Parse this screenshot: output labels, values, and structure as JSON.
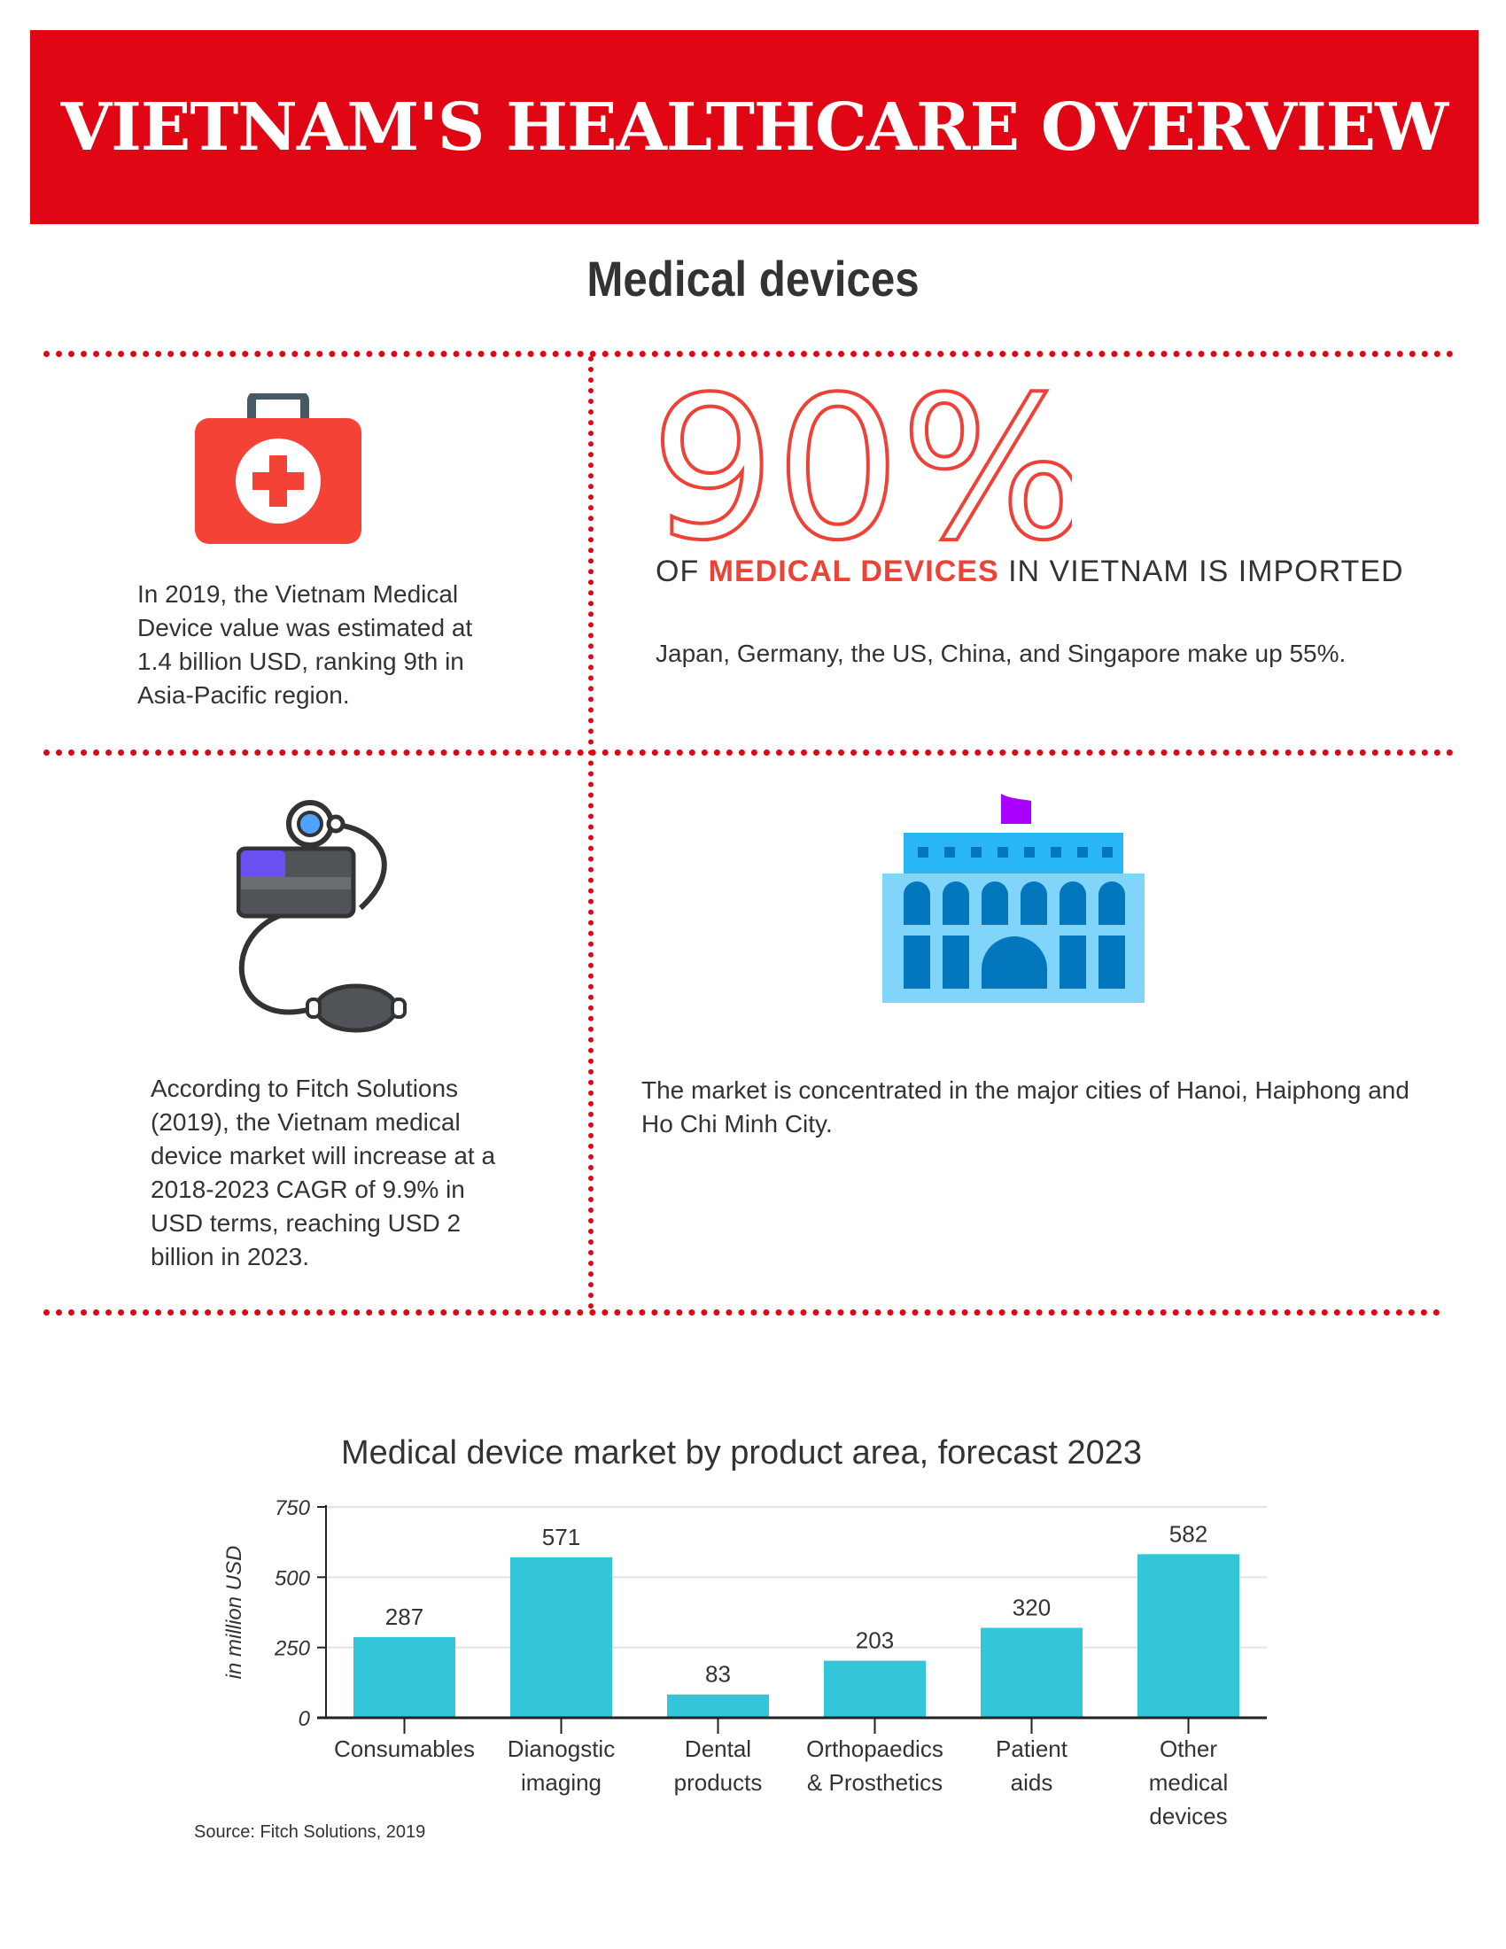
{
  "header": {
    "title": "VIETNAM'S HEALTHCARE OVERVIEW"
  },
  "section": {
    "title": "Medical devices"
  },
  "cards": [
    {
      "icon": "medical-kit-icon",
      "text": "In 2019, the Vietnam Medical Device value was estimated at 1.4 billion USD, ranking 9th in Asia-Pacific region."
    },
    {
      "big_stat": "90%",
      "stat_prefix": "OF",
      "stat_highlight": "MEDICAL DEVICES",
      "stat_suffix": "IN VIETNAM IS IMPORTED",
      "text": "Japan, Germany, the US, China, and Singapore make up 55%."
    },
    {
      "icon": "blood-pressure-monitor-icon",
      "text": "According to Fitch Solutions (2019), the Vietnam medical device market will increase at a 2018-2023 CAGR of 9.9% in USD terms, reaching USD 2 billion in 2023."
    },
    {
      "icon": "city-building-icon",
      "text": "The market is concentrated in the major cities of Hanoi, Haiphong and Ho Chi Minh City."
    }
  ],
  "colors": {
    "brand_red": "#e10613",
    "stat_red": "#ef4136",
    "bar": "#33c6d8"
  },
  "chart_data": {
    "type": "bar",
    "title": "Medical device market by product area, forecast 2023",
    "categories": [
      [
        "Consumables"
      ],
      [
        "Dianogstic",
        "imaging"
      ],
      [
        "Dental",
        "products"
      ],
      [
        "Orthopaedics",
        "& Prosthetics"
      ],
      [
        "Patient",
        "aids"
      ],
      [
        "Other",
        "medical",
        "devices"
      ]
    ],
    "values": [
      287,
      571,
      83,
      203,
      320,
      582
    ],
    "ylabel": "in million USD",
    "xlabel": "",
    "ylim": [
      0,
      750
    ],
    "yticks": [
      0,
      250,
      500,
      750
    ],
    "grid": true,
    "source": "Source: Fitch Solutions, 2019"
  }
}
